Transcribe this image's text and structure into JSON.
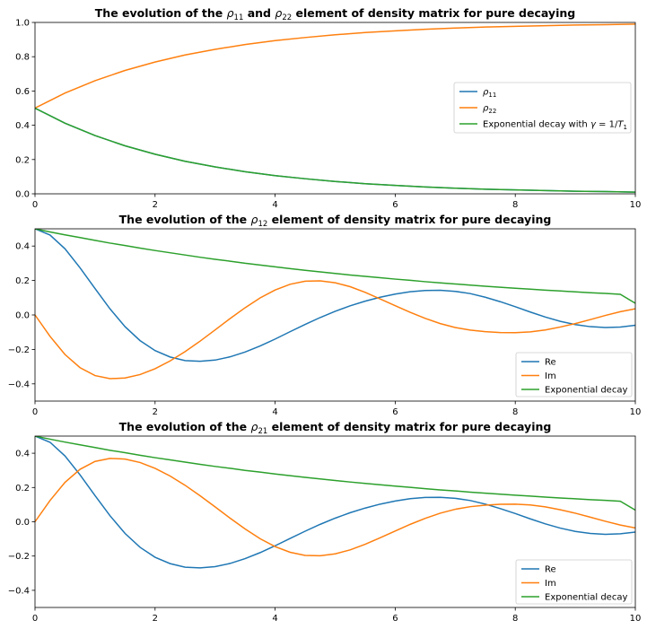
{
  "colors": {
    "blue": "#1f77b4",
    "orange": "#ff7f0e",
    "green": "#2ca02c"
  },
  "chart_data": [
    {
      "type": "line",
      "title": {
        "pre": "The evolution of the ",
        "v1": "ρ",
        "s1": "11",
        "mid": " and ",
        "v2": "ρ",
        "s2": "22",
        "post": " element of density matrix for pure decaying"
      },
      "xlim": [
        0,
        10
      ],
      "ylim": [
        0,
        1
      ],
      "x_ticks": [
        "0",
        "2",
        "4",
        "6",
        "8",
        "10"
      ],
      "y_ticks": [
        "0.0",
        "0.2",
        "0.4",
        "0.6",
        "0.8",
        "1.0"
      ],
      "grid": false,
      "legend_position": "center-right",
      "x": [
        0,
        0.5,
        1,
        1.5,
        2,
        2.5,
        3,
        3.5,
        4,
        4.5,
        5,
        5.5,
        6,
        6.5,
        7,
        7.5,
        8,
        8.5,
        9,
        9.5,
        10
      ],
      "series": [
        {
          "name": {
            "var": "ρ",
            "sub": "11"
          },
          "color": "blue",
          "values": [
            0.5,
            0.412,
            0.34,
            0.28,
            0.231,
            0.19,
            0.157,
            0.129,
            0.106,
            0.088,
            0.072,
            0.059,
            0.049,
            0.04,
            0.033,
            0.027,
            0.023,
            0.019,
            0.015,
            0.013,
            0.01
          ]
        },
        {
          "name": {
            "var": "ρ",
            "sub": "22"
          },
          "color": "orange",
          "values": [
            0.5,
            0.588,
            0.66,
            0.72,
            0.769,
            0.81,
            0.843,
            0.871,
            0.894,
            0.912,
            0.928,
            0.941,
            0.951,
            0.96,
            0.967,
            0.973,
            0.977,
            0.981,
            0.985,
            0.987,
            0.99
          ]
        },
        {
          "name": {
            "pre": "Exponential decay with ",
            "var": "γ",
            "mid": " = 1/",
            "var2": "T",
            "sub": "1"
          },
          "color": "green",
          "values": [
            0.5,
            0.412,
            0.34,
            0.28,
            0.231,
            0.19,
            0.157,
            0.129,
            0.106,
            0.088,
            0.072,
            0.059,
            0.049,
            0.04,
            0.033,
            0.027,
            0.023,
            0.019,
            0.015,
            0.013,
            0.01
          ]
        }
      ]
    },
    {
      "type": "line",
      "title": {
        "pre": "The evolution of the ",
        "v1": "ρ",
        "s1": "12",
        "post": " element of density matrix for pure decaying"
      },
      "xlim": [
        0,
        10
      ],
      "ylim": [
        -0.5,
        0.5
      ],
      "x_ticks": [
        "0",
        "2",
        "4",
        "6",
        "8",
        "10"
      ],
      "y_ticks": [
        "−0.4",
        "−0.2",
        "0.0",
        "0.2",
        "0.4"
      ],
      "grid": false,
      "legend_position": "lower-right",
      "x": [
        0,
        0.25,
        0.5,
        0.75,
        1,
        1.25,
        1.5,
        1.75,
        2,
        2.25,
        2.5,
        2.75,
        3,
        3.25,
        3.5,
        3.75,
        4,
        4.25,
        4.5,
        4.75,
        5,
        5.25,
        5.5,
        5.75,
        6,
        6.25,
        6.5,
        6.75,
        7,
        7.25,
        7.5,
        7.75,
        8,
        8.25,
        8.5,
        8.75,
        9,
        9.25,
        9.5,
        9.75,
        10
      ],
      "series": [
        {
          "name": "Re",
          "color": "blue",
          "values": [
            0.5,
            0.464,
            0.384,
            0.274,
            0.153,
            0.035,
            -0.068,
            -0.149,
            -0.207,
            -0.244,
            -0.265,
            -0.269,
            -0.262,
            -0.243,
            -0.215,
            -0.18,
            -0.14,
            -0.097,
            -0.055,
            -0.015,
            0.021,
            0.053,
            0.08,
            0.103,
            0.121,
            0.135,
            0.142,
            0.143,
            0.137,
            0.124,
            0.103,
            0.077,
            0.048,
            0.017,
            -0.012,
            -0.037,
            -0.056,
            -0.068,
            -0.073,
            -0.07,
            -0.06
          ]
        },
        {
          "name": "Im",
          "color": "orange",
          "values": [
            0.0,
            -0.124,
            -0.23,
            -0.306,
            -0.352,
            -0.37,
            -0.366,
            -0.346,
            -0.312,
            -0.267,
            -0.213,
            -0.152,
            -0.087,
            -0.021,
            0.042,
            0.099,
            0.145,
            0.178,
            0.196,
            0.198,
            0.187,
            0.164,
            0.131,
            0.093,
            0.054,
            0.015,
            -0.02,
            -0.05,
            -0.073,
            -0.088,
            -0.097,
            -0.102,
            -0.103,
            -0.098,
            -0.087,
            -0.07,
            -0.05,
            -0.027,
            -0.003,
            0.019,
            0.036
          ]
        },
        {
          "name": "Exponential decay",
          "color": "green",
          "values": [
            0.5,
            0.482,
            0.465,
            0.449,
            0.433,
            0.417,
            0.403,
            0.388,
            0.374,
            0.361,
            0.348,
            0.335,
            0.323,
            0.312,
            0.3,
            0.29,
            0.279,
            0.269,
            0.259,
            0.25,
            0.241,
            0.232,
            0.224,
            0.216,
            0.208,
            0.201,
            0.193,
            0.186,
            0.18,
            0.173,
            0.167,
            0.161,
            0.155,
            0.15,
            0.144,
            0.139,
            0.134,
            0.129,
            0.125,
            0.12,
            0.068
          ]
        }
      ]
    },
    {
      "type": "line",
      "title": {
        "pre": "The evolution of the ",
        "v1": "ρ",
        "s1": "21",
        "post": " element of density matrix for pure decaying"
      },
      "xlim": [
        0,
        10
      ],
      "ylim": [
        -0.5,
        0.5
      ],
      "x_ticks": [
        "0",
        "2",
        "4",
        "6",
        "8",
        "10"
      ],
      "y_ticks": [
        "−0.4",
        "−0.2",
        "0.0",
        "0.2",
        "0.4"
      ],
      "grid": false,
      "legend_position": "lower-right",
      "x": [
        0,
        0.25,
        0.5,
        0.75,
        1,
        1.25,
        1.5,
        1.75,
        2,
        2.25,
        2.5,
        2.75,
        3,
        3.25,
        3.5,
        3.75,
        4,
        4.25,
        4.5,
        4.75,
        5,
        5.25,
        5.5,
        5.75,
        6,
        6.25,
        6.5,
        6.75,
        7,
        7.25,
        7.5,
        7.75,
        8,
        8.25,
        8.5,
        8.75,
        9,
        9.25,
        9.5,
        9.75,
        10
      ],
      "series": [
        {
          "name": "Re",
          "color": "blue",
          "values": [
            0.5,
            0.464,
            0.384,
            0.274,
            0.153,
            0.035,
            -0.068,
            -0.149,
            -0.207,
            -0.244,
            -0.265,
            -0.269,
            -0.262,
            -0.243,
            -0.215,
            -0.18,
            -0.14,
            -0.097,
            -0.055,
            -0.015,
            0.021,
            0.053,
            0.08,
            0.103,
            0.121,
            0.135,
            0.142,
            0.143,
            0.137,
            0.124,
            0.103,
            0.077,
            0.048,
            0.017,
            -0.012,
            -0.037,
            -0.056,
            -0.068,
            -0.073,
            -0.07,
            -0.06
          ]
        },
        {
          "name": "Im",
          "color": "orange",
          "values": [
            0.0,
            0.124,
            0.23,
            0.306,
            0.352,
            0.37,
            0.366,
            0.346,
            0.312,
            0.267,
            0.213,
            0.152,
            0.087,
            0.021,
            -0.042,
            -0.099,
            -0.145,
            -0.178,
            -0.196,
            -0.198,
            -0.187,
            -0.164,
            -0.131,
            -0.093,
            -0.054,
            -0.015,
            0.02,
            0.05,
            0.073,
            0.088,
            0.097,
            0.102,
            0.103,
            0.098,
            0.087,
            0.07,
            0.05,
            0.027,
            0.003,
            -0.019,
            -0.036
          ]
        },
        {
          "name": "Exponential decay",
          "color": "green",
          "values": [
            0.5,
            0.482,
            0.465,
            0.449,
            0.433,
            0.417,
            0.403,
            0.388,
            0.374,
            0.361,
            0.348,
            0.335,
            0.323,
            0.312,
            0.3,
            0.29,
            0.279,
            0.269,
            0.259,
            0.25,
            0.241,
            0.232,
            0.224,
            0.216,
            0.208,
            0.201,
            0.193,
            0.186,
            0.18,
            0.173,
            0.167,
            0.161,
            0.155,
            0.15,
            0.144,
            0.139,
            0.134,
            0.129,
            0.125,
            0.12,
            0.068
          ]
        }
      ]
    }
  ]
}
